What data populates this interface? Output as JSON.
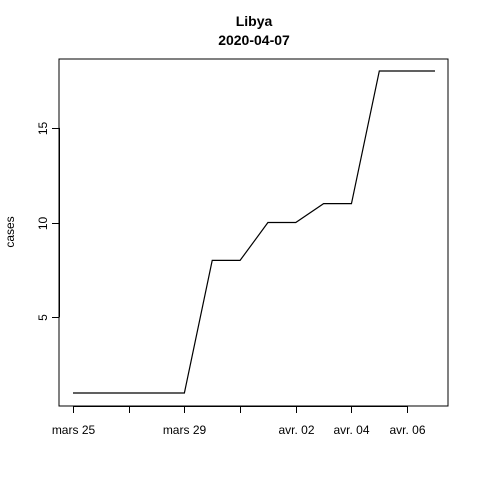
{
  "chart_data": {
    "type": "line",
    "title": "Libya",
    "subtitle": "2020-04-07",
    "xlabel": "",
    "ylabel": "cases",
    "x": [
      "2020-03-25",
      "2020-03-26",
      "2020-03-27",
      "2020-03-28",
      "2020-03-29",
      "2020-03-30",
      "2020-03-31",
      "2020-04-01",
      "2020-04-02",
      "2020-04-03",
      "2020-04-04",
      "2020-04-05",
      "2020-04-06",
      "2020-04-07"
    ],
    "series": [
      {
        "values": [
          1,
          1,
          1,
          1,
          1,
          8,
          8,
          10,
          10,
          11,
          11,
          18,
          18,
          18
        ]
      }
    ],
    "xlim": [
      "2020-03-25",
      "2020-04-07"
    ],
    "ylim": [
      1,
      18
    ],
    "x_ticks": [
      {
        "date": "2020-03-25",
        "label": "mars 25"
      },
      {
        "date": "2020-03-27",
        "label": ""
      },
      {
        "date": "2020-03-29",
        "label": "mars 29"
      },
      {
        "date": "2020-03-31",
        "label": ""
      },
      {
        "date": "2020-04-02",
        "label": "avr. 02"
      },
      {
        "date": "2020-04-04",
        "label": "avr. 04"
      },
      {
        "date": "2020-04-06",
        "label": "avr. 06"
      }
    ],
    "y_ticks": [
      5,
      10,
      15
    ],
    "grid": false,
    "legend": "none"
  }
}
